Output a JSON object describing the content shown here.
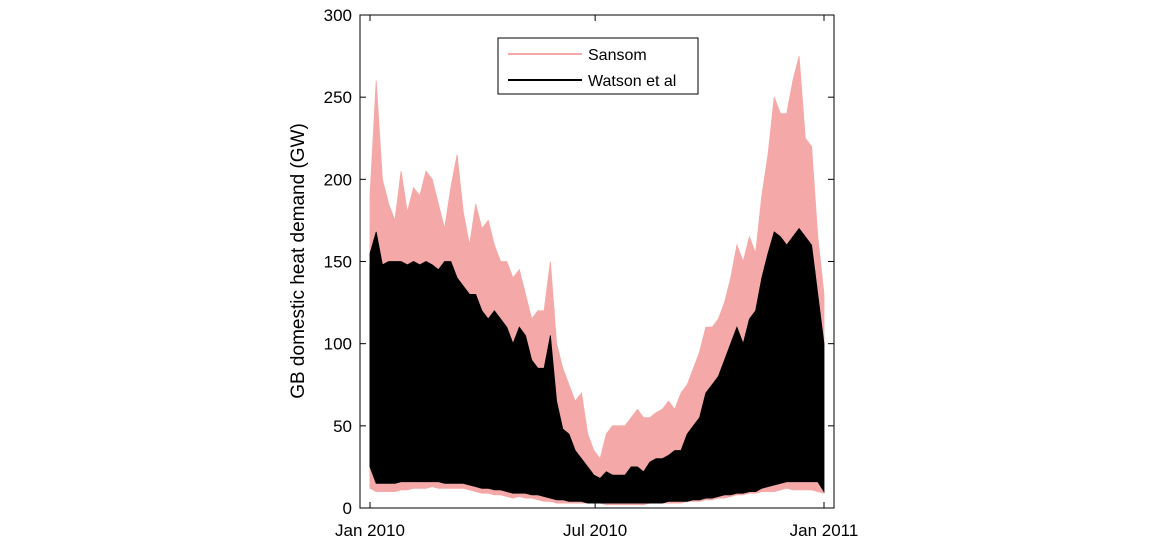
{
  "chart_data": {
    "type": "area",
    "title": "",
    "xlabel": "",
    "ylabel": "GB domestic heat demand (GW)",
    "xlim": [
      "2010-01-01",
      "2011-01-01"
    ],
    "ylim": [
      0,
      300
    ],
    "grid": false,
    "legend_position": "top-center",
    "x_ticks": [
      {
        "date": "2010-01-01",
        "label": "Jan 2010"
      },
      {
        "date": "2010-07-01",
        "label": "Jul 2010"
      },
      {
        "date": "2011-01-01",
        "label": "Jan 2011"
      }
    ],
    "y_ticks": [
      0,
      50,
      100,
      150,
      200,
      250,
      300
    ],
    "x": [
      "2010-01-01",
      "2010-01-06",
      "2010-01-11",
      "2010-01-16",
      "2010-01-21",
      "2010-01-26",
      "2010-01-31",
      "2010-02-05",
      "2010-02-10",
      "2010-02-15",
      "2010-02-20",
      "2010-02-25",
      "2010-03-02",
      "2010-03-07",
      "2010-03-12",
      "2010-03-17",
      "2010-03-22",
      "2010-03-27",
      "2010-04-01",
      "2010-04-06",
      "2010-04-11",
      "2010-04-16",
      "2010-04-21",
      "2010-04-26",
      "2010-05-01",
      "2010-05-06",
      "2010-05-11",
      "2010-05-16",
      "2010-05-21",
      "2010-05-26",
      "2010-05-31",
      "2010-06-05",
      "2010-06-10",
      "2010-06-15",
      "2010-06-20",
      "2010-06-25",
      "2010-06-30",
      "2010-07-05",
      "2010-07-10",
      "2010-07-15",
      "2010-07-20",
      "2010-07-25",
      "2010-07-30",
      "2010-08-04",
      "2010-08-09",
      "2010-08-14",
      "2010-08-19",
      "2010-08-24",
      "2010-08-29",
      "2010-09-03",
      "2010-09-08",
      "2010-09-13",
      "2010-09-18",
      "2010-09-23",
      "2010-09-28",
      "2010-10-03",
      "2010-10-08",
      "2010-10-13",
      "2010-10-18",
      "2010-10-23",
      "2010-10-28",
      "2010-11-02",
      "2010-11-07",
      "2010-11-12",
      "2010-11-17",
      "2010-11-22",
      "2010-11-27",
      "2010-12-02",
      "2010-12-07",
      "2010-12-12",
      "2010-12-17",
      "2010-12-22",
      "2010-12-27",
      "2011-01-01"
    ],
    "series": [
      {
        "name": "Sansom",
        "color": "#f4a8a8",
        "max": [
          190,
          260,
          200,
          185,
          175,
          205,
          180,
          195,
          190,
          205,
          200,
          185,
          170,
          195,
          215,
          180,
          160,
          185,
          170,
          175,
          160,
          150,
          150,
          140,
          145,
          130,
          115,
          120,
          120,
          150,
          100,
          85,
          75,
          65,
          70,
          45,
          35,
          30,
          45,
          50,
          50,
          50,
          55,
          60,
          55,
          55,
          58,
          60,
          65,
          60,
          70,
          75,
          85,
          95,
          110,
          110,
          115,
          125,
          140,
          160,
          150,
          165,
          155,
          190,
          215,
          250,
          240,
          240,
          260,
          275,
          225,
          220,
          165,
          130
        ],
        "min": [
          12,
          10,
          10,
          10,
          10,
          11,
          11,
          12,
          12,
          12,
          13,
          12,
          12,
          12,
          12,
          12,
          11,
          10,
          9,
          9,
          8,
          8,
          7,
          6,
          7,
          6,
          6,
          5,
          4,
          4,
          3,
          3,
          3,
          3,
          3,
          3,
          3,
          3,
          2,
          2,
          2,
          2,
          2,
          2,
          2,
          3,
          3,
          3,
          3,
          3,
          3,
          4,
          4,
          4,
          5,
          5,
          6,
          6,
          7,
          8,
          8,
          9,
          9,
          10,
          10,
          10,
          11,
          12,
          11,
          11,
          11,
          11,
          10,
          9
        ]
      },
      {
        "name": "Watson et al",
        "color": "#000000",
        "max": [
          155,
          168,
          148,
          150,
          150,
          150,
          148,
          150,
          148,
          150,
          148,
          145,
          150,
          150,
          140,
          135,
          130,
          130,
          120,
          115,
          120,
          115,
          110,
          100,
          110,
          105,
          90,
          85,
          85,
          105,
          65,
          48,
          45,
          35,
          30,
          25,
          20,
          18,
          22,
          20,
          20,
          20,
          25,
          25,
          22,
          28,
          30,
          30,
          32,
          35,
          35,
          45,
          50,
          55,
          70,
          75,
          80,
          90,
          100,
          110,
          100,
          115,
          120,
          140,
          155,
          168,
          165,
          160,
          165,
          170,
          165,
          160,
          130,
          100
        ],
        "min": [
          25,
          15,
          15,
          15,
          15,
          16,
          16,
          16,
          16,
          16,
          16,
          16,
          15,
          15,
          15,
          15,
          14,
          13,
          12,
          12,
          11,
          11,
          10,
          9,
          9,
          9,
          8,
          8,
          7,
          6,
          5,
          5,
          4,
          4,
          4,
          3,
          3,
          3,
          3,
          3,
          3,
          3,
          3,
          3,
          3,
          3,
          3,
          3,
          4,
          4,
          4,
          4,
          5,
          5,
          6,
          6,
          7,
          8,
          8,
          9,
          9,
          10,
          10,
          12,
          13,
          14,
          15,
          16,
          16,
          16,
          16,
          16,
          16,
          10
        ]
      }
    ]
  }
}
